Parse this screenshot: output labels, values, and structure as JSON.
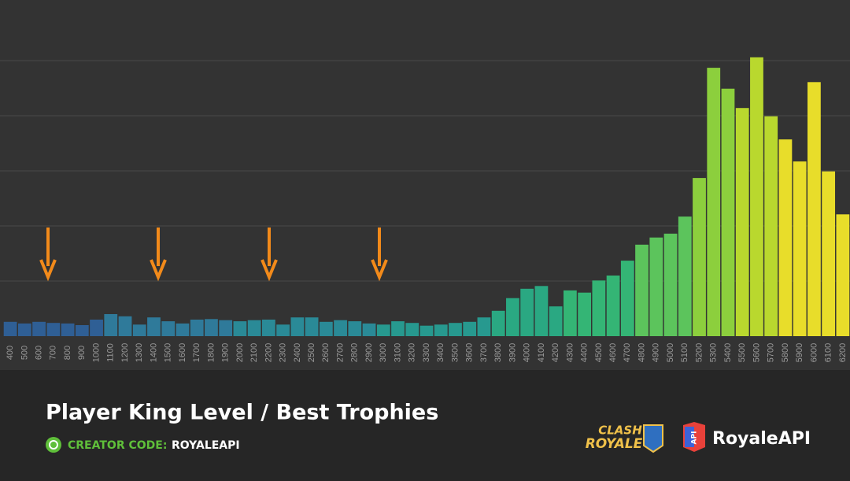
{
  "chart_data": {
    "type": "bar",
    "title": "Player King Level / Best Trophies",
    "categories": [
      "400",
      "500",
      "600",
      "700",
      "800",
      "900",
      "1000",
      "1100",
      "1200",
      "1300",
      "1400",
      "1500",
      "1600",
      "1700",
      "1800",
      "1900",
      "2000",
      "2100",
      "2200",
      "2300",
      "2400",
      "2500",
      "2600",
      "2700",
      "2800",
      "2900",
      "3000",
      "3100",
      "3200",
      "3300",
      "3400",
      "3500",
      "3600",
      "3700",
      "3800",
      "3900",
      "4000",
      "4100",
      "4200",
      "4300",
      "4400",
      "4500",
      "4600",
      "4700",
      "4800",
      "4900",
      "5000",
      "5100",
      "5200",
      "5300",
      "5400",
      "5500",
      "5600",
      "5700",
      "5800",
      "5900",
      "6000",
      "6100",
      "6200"
    ],
    "values": [
      0.26,
      0.23,
      0.26,
      0.24,
      0.23,
      0.2,
      0.3,
      0.4,
      0.36,
      0.21,
      0.34,
      0.27,
      0.23,
      0.3,
      0.31,
      0.29,
      0.27,
      0.29,
      0.3,
      0.21,
      0.34,
      0.34,
      0.26,
      0.29,
      0.27,
      0.23,
      0.21,
      0.27,
      0.24,
      0.19,
      0.21,
      0.24,
      0.26,
      0.34,
      0.46,
      0.69,
      0.86,
      0.91,
      0.54,
      0.83,
      0.79,
      1.01,
      1.1,
      1.37,
      1.66,
      1.79,
      1.86,
      2.17,
      2.87,
      4.87,
      4.49,
      4.14,
      5.06,
      3.99,
      3.57,
      3.17,
      4.61,
      2.99,
      2.21
    ],
    "colors": [
      "#2f5f95",
      "#2f5f95",
      "#2f5f95",
      "#2f5f95",
      "#2f5f95",
      "#2f5f95",
      "#2f5f95",
      "#2f7a9a",
      "#2f7a9a",
      "#2f7a9a",
      "#2f7a9a",
      "#2f7a9a",
      "#2f7a9a",
      "#2f7a9a",
      "#2f7a9a",
      "#2f7a9a",
      "#2a8a97",
      "#2a8a97",
      "#2a8a97",
      "#2a8a97",
      "#2a8a97",
      "#2a8a97",
      "#2a8a97",
      "#2a8a97",
      "#2a8a97",
      "#2a8a97",
      "#27998f",
      "#27998f",
      "#27998f",
      "#27998f",
      "#27998f",
      "#27998f",
      "#27998f",
      "#27998f",
      "#2aa882",
      "#2aa882",
      "#2aa882",
      "#2aa882",
      "#2aa882",
      "#34b575",
      "#34b575",
      "#34b575",
      "#34b575",
      "#34b575",
      "#5cc45c",
      "#5cc45c",
      "#5cc45c",
      "#5cc45c",
      "#8ccf3d",
      "#8ccf3d",
      "#8ccf3d",
      "#b9d82e",
      "#b9d82e",
      "#b9d82e",
      "#e8dd2a",
      "#e8dd2a",
      "#e8dd2a",
      "#e8dd2a",
      "#e8dd2a"
    ],
    "ylim": [
      0,
      6
    ],
    "yticks": [
      1,
      2,
      3,
      4,
      5
    ],
    "grid": true
  },
  "footer": {
    "creator_label": "CREATOR CODE:",
    "creator_code": "ROYALEAPI",
    "game_logo_top": "CLASH",
    "game_logo_bottom": "ROYALE",
    "api_badge": "API",
    "brand": "RoyaleAPI"
  }
}
